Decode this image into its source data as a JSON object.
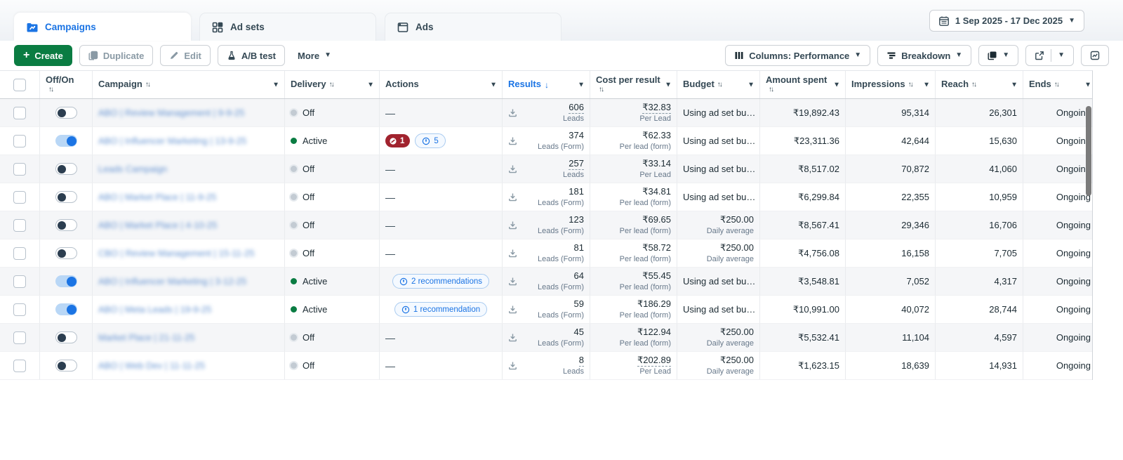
{
  "tabs": [
    {
      "label": "Campaigns",
      "active": true
    },
    {
      "label": "Ad sets",
      "active": false
    },
    {
      "label": "Ads",
      "active": false
    }
  ],
  "date_range": {
    "label": "1 Sep 2025 - 17 Dec 2025"
  },
  "toolbar": {
    "create": "Create",
    "duplicate": "Duplicate",
    "edit": "Edit",
    "ab_test": "A/B test",
    "more": "More",
    "columns": "Columns: Performance",
    "breakdown": "Breakdown"
  },
  "table": {
    "headers": [
      {
        "label": "Off/On"
      },
      {
        "label": "Campaign"
      },
      {
        "label": "Delivery"
      },
      {
        "label": "Actions"
      },
      {
        "label": "Results"
      },
      {
        "label": "Cost per result"
      },
      {
        "label": "Budget"
      },
      {
        "label": "Amount spent"
      },
      {
        "label": "Impressions"
      },
      {
        "label": "Reach"
      },
      {
        "label": "Ends"
      }
    ],
    "rows": [
      {
        "toggle": "off",
        "name": "ABO | Review Management | 9-9-25",
        "delivery": "Off",
        "actions": {
          "type": "none",
          "label": "—"
        },
        "results": {
          "value": "606",
          "sub": "Leads",
          "est": true
        },
        "cost": {
          "value": "₹32.83",
          "sub": "Per Lead",
          "est": true
        },
        "budget": {
          "text": "Using ad set bu…",
          "sub": ""
        },
        "spent": "₹19,892.43",
        "impressions": "95,314",
        "reach": "26,301",
        "ends": "Ongoing"
      },
      {
        "toggle": "on",
        "name": "ABO | Influencer Marketing | 13-9-25",
        "delivery": "Active",
        "actions": {
          "type": "badges",
          "error_count": "1",
          "reco_count": "5"
        },
        "results": {
          "value": "374",
          "sub": "Leads (Form)",
          "est": false
        },
        "cost": {
          "value": "₹62.33",
          "sub": "Per lead (form)",
          "est": false
        },
        "budget": {
          "text": "Using ad set bu…",
          "sub": ""
        },
        "spent": "₹23,311.36",
        "impressions": "42,644",
        "reach": "15,630",
        "ends": "Ongoing"
      },
      {
        "toggle": "off",
        "name": "Leads Campaign",
        "delivery": "Off",
        "actions": {
          "type": "none",
          "label": "—"
        },
        "results": {
          "value": "257",
          "sub": "Leads",
          "est": true
        },
        "cost": {
          "value": "₹33.14",
          "sub": "Per Lead",
          "est": false
        },
        "budget": {
          "text": "Using ad set bu…",
          "sub": ""
        },
        "spent": "₹8,517.02",
        "impressions": "70,872",
        "reach": "41,060",
        "ends": "Ongoing"
      },
      {
        "toggle": "off",
        "name": "ABO | Market Place | 11-9-25",
        "delivery": "Off",
        "actions": {
          "type": "none",
          "label": "—"
        },
        "results": {
          "value": "181",
          "sub": "Leads (Form)",
          "est": false
        },
        "cost": {
          "value": "₹34.81",
          "sub": "Per lead (form)",
          "est": false
        },
        "budget": {
          "text": "Using ad set bu…",
          "sub": ""
        },
        "spent": "₹6,299.84",
        "impressions": "22,355",
        "reach": "10,959",
        "ends": "Ongoing"
      },
      {
        "toggle": "off",
        "name": "ABO | Market Place | 4-10-25",
        "delivery": "Off",
        "actions": {
          "type": "none",
          "label": "—"
        },
        "results": {
          "value": "123",
          "sub": "Leads (Form)",
          "est": false
        },
        "cost": {
          "value": "₹69.65",
          "sub": "Per lead (form)",
          "est": false
        },
        "budget": {
          "text": "₹250.00",
          "sub": "Daily average"
        },
        "spent": "₹8,567.41",
        "impressions": "29,346",
        "reach": "16,706",
        "ends": "Ongoing"
      },
      {
        "toggle": "off",
        "name": "CBO | Review Management | 15-11-25",
        "delivery": "Off",
        "actions": {
          "type": "none",
          "label": "—"
        },
        "results": {
          "value": "81",
          "sub": "Leads (Form)",
          "est": false
        },
        "cost": {
          "value": "₹58.72",
          "sub": "Per lead (form)",
          "est": false
        },
        "budget": {
          "text": "₹250.00",
          "sub": "Daily average"
        },
        "spent": "₹4,756.08",
        "impressions": "16,158",
        "reach": "7,705",
        "ends": "Ongoing"
      },
      {
        "toggle": "on",
        "name": "ABO | Influencer Marketing | 3-12-25",
        "delivery": "Active",
        "actions": {
          "type": "recommendation",
          "label": "2 recommendations"
        },
        "results": {
          "value": "64",
          "sub": "Leads (Form)",
          "est": false
        },
        "cost": {
          "value": "₹55.45",
          "sub": "Per lead (form)",
          "est": false
        },
        "budget": {
          "text": "Using ad set bu…",
          "sub": ""
        },
        "spent": "₹3,548.81",
        "impressions": "7,052",
        "reach": "4,317",
        "ends": "Ongoing"
      },
      {
        "toggle": "on",
        "name": "ABO | Meta Leads | 19-9-25",
        "delivery": "Active",
        "actions": {
          "type": "recommendation",
          "label": "1 recommendation"
        },
        "results": {
          "value": "59",
          "sub": "Leads (Form)",
          "est": false
        },
        "cost": {
          "value": "₹186.29",
          "sub": "Per lead (form)",
          "est": false
        },
        "budget": {
          "text": "Using ad set bu…",
          "sub": ""
        },
        "spent": "₹10,991.00",
        "impressions": "40,072",
        "reach": "28,744",
        "ends": "Ongoing"
      },
      {
        "toggle": "off",
        "name": "Market Place | 21-11-25",
        "delivery": "Off",
        "actions": {
          "type": "none",
          "label": "—"
        },
        "results": {
          "value": "45",
          "sub": "Leads (Form)",
          "est": false
        },
        "cost": {
          "value": "₹122.94",
          "sub": "Per lead (form)",
          "est": false
        },
        "budget": {
          "text": "₹250.00",
          "sub": "Daily average"
        },
        "spent": "₹5,532.41",
        "impressions": "11,104",
        "reach": "4,597",
        "ends": "Ongoing"
      },
      {
        "toggle": "off",
        "name": "ABO | Web Dev | 11-11-25",
        "delivery": "Off",
        "actions": {
          "type": "none",
          "label": "—"
        },
        "results": {
          "value": "8",
          "sub": "Leads",
          "est": true
        },
        "cost": {
          "value": "₹202.89",
          "sub": "Per Lead",
          "est": true
        },
        "budget": {
          "text": "₹250.00",
          "sub": "Daily average"
        },
        "spent": "₹1,623.15",
        "impressions": "18,639",
        "reach": "14,931",
        "ends": "Ongoing"
      }
    ]
  },
  "colors": {
    "accent_blue": "#1b74e4",
    "create_green": "#0a7c42",
    "error_red": "#a1232e",
    "active_green": "#0a7c42",
    "row_alt": "#f5f6f8"
  }
}
